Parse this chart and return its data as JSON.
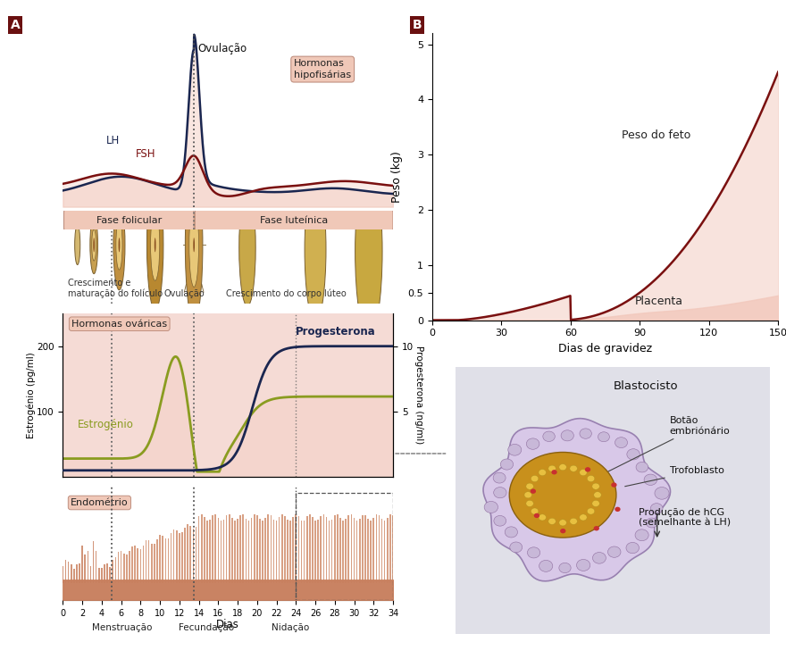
{
  "bg_color": "#ffffff",
  "pink_bg": "#f2c8bc",
  "pink_light": "#f5dbd5",
  "pink_very_light": "#faf0ee",
  "dark_navy": "#1a2650",
  "dark_red": "#7a1010",
  "olive_green": "#8a9c20",
  "box_fill": "#f0c8b8",
  "box_edge": "#c09080",
  "follicle_color": "#c8a060",
  "follicle_edge": "#7a6030",
  "endometrium_top": "#c06840",
  "endometrium_base": "#d08858",
  "gray_bg": "#e0e0e8",
  "blasto_outer_fill": "#d8c8e8",
  "blasto_outer_edge": "#9880b0",
  "blasto_inner_fill": "#c8901c",
  "blasto_inner_edge": "#8a6010",
  "panel_A_label": "A",
  "panel_B_label": "B",
  "ovulation_label": "Ovulação",
  "hipofisarias_label": "Hormonas\nhipofisárias",
  "LH_label": "LH",
  "FSH_label": "FSH",
  "fase_folicular": "Fase folicular",
  "fase_luteinica": "Fase luteínica",
  "crescimento_label": "Crescimento e\nmaturação do folículo",
  "ovulacao_label2": "Ovulação",
  "corpo_luteo_label": "Crescimento do corpo lúteo",
  "hormonas_ovaricas": "Hormonas ováricas",
  "progesterona_label": "Progesterona",
  "estrogenia_label": "Estrogénio",
  "endometrio_label": "Endométrio",
  "dias_label": "Dias",
  "menstruacao_label": "Menstruação",
  "fecundacao_label": "Fecundação",
  "nidacao_label": "Nidação",
  "dias_gravidez_label": "Dias de gravidez",
  "peso_label": "Peso (kg)",
  "estrogenia_axis": "Estrogénio (pg/ml)",
  "progesterona_axis": "Progesterona (ng/ml)",
  "peso_feto_label": "Peso do feto",
  "placenta_label": "Placenta",
  "blastocisto_label": "Blastocisto",
  "botao_label": "Botão\nembriónário",
  "trofoblasto_label": "Trofoblasto",
  "hcg_label": "Produção de hCG\n(semelhante à LH)"
}
